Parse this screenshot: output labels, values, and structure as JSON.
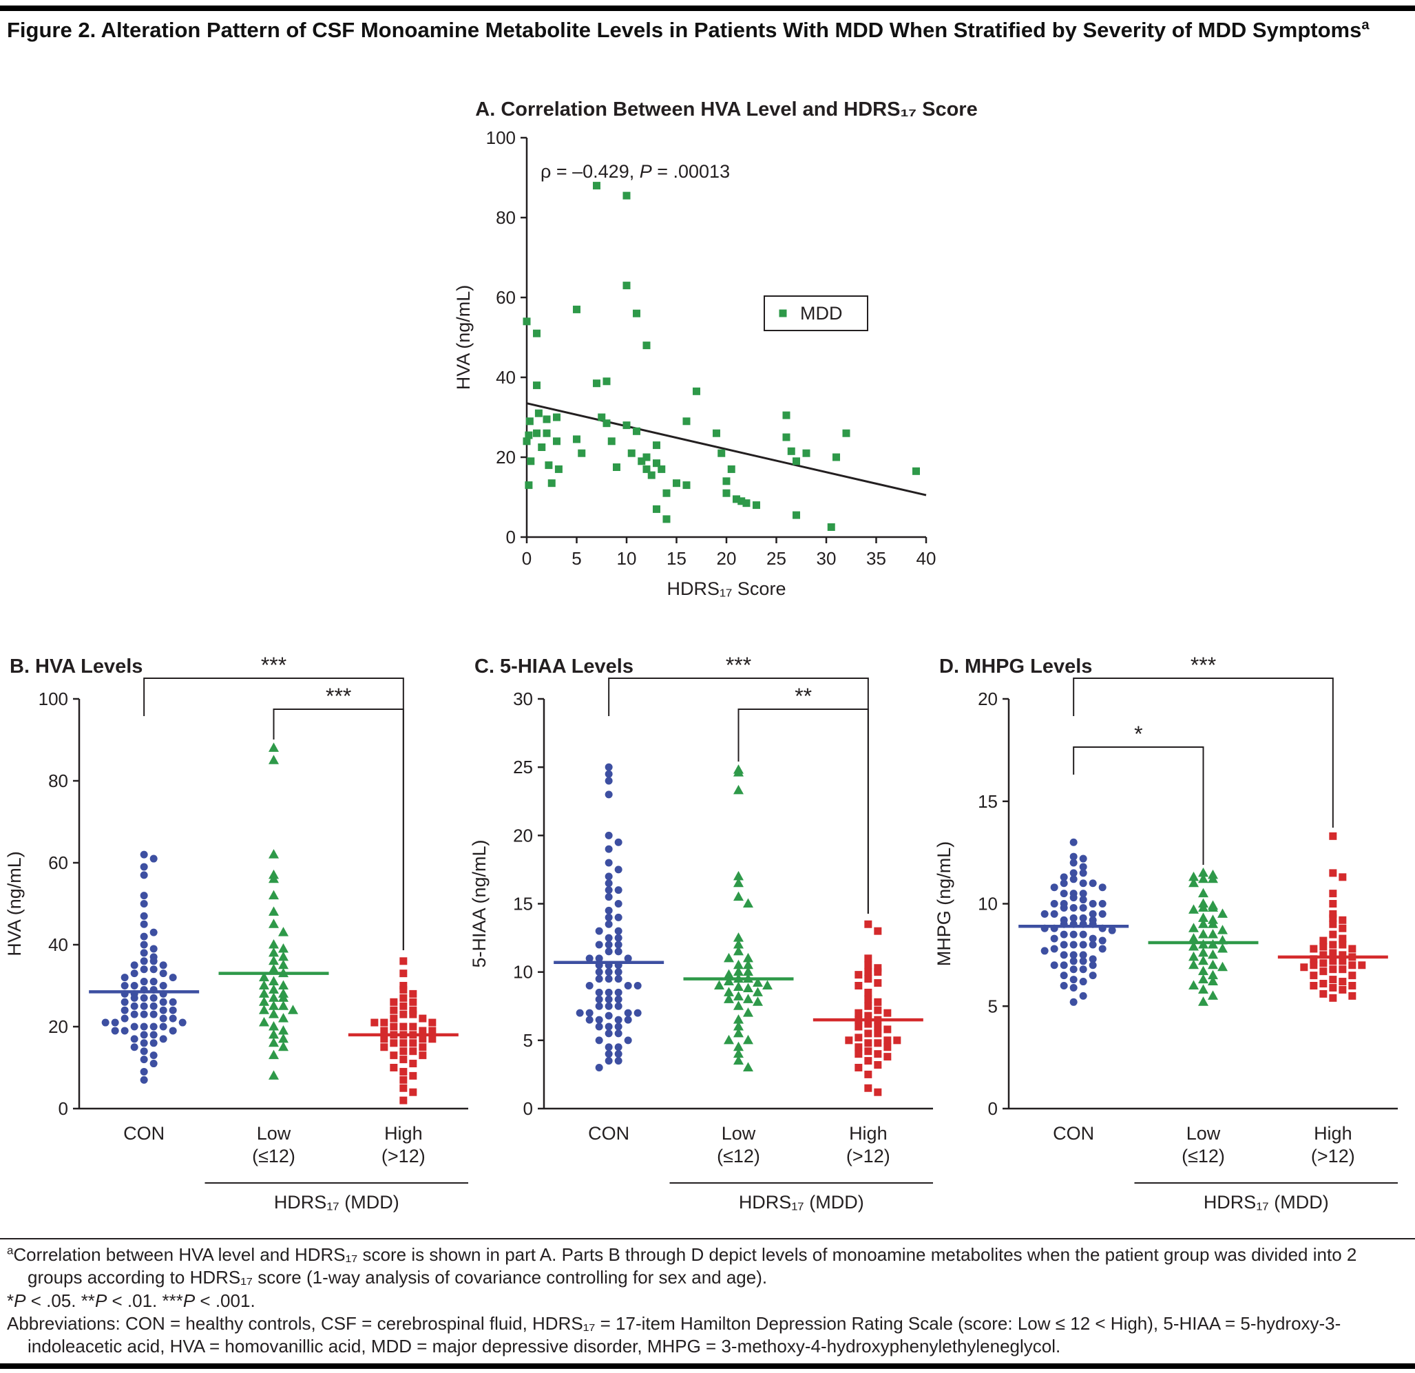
{
  "figure_title": [
    {
      "t": "Figure 2. Alteration Pattern of CSF Monoamine Metabolite Levels in Patients With MDD When Stratified by Severity of MDD Symptoms"
    },
    {
      "t": "a",
      "s": "sup"
    }
  ],
  "colors": {
    "con_blue": "#3d4fa1",
    "mdd_green": "#2e9949",
    "high_red": "#d42a2c",
    "axis": "#231f20"
  },
  "chart_data": [
    {
      "id": "A",
      "type": "scatter",
      "title": "A. Correlation Between HVA Level and HDRS₁₇ Score",
      "annotation": {
        "text": "ρ = –0.429, ",
        "p": "P",
        "value": " = .00013"
      },
      "legend": {
        "label": "MDD",
        "position": "right-middle"
      },
      "color": "#2e9949",
      "xlabel": "HDRS₁₇ Score",
      "ylabel": "HVA (ng/mL)",
      "xlim": [
        0,
        40
      ],
      "xticks": [
        0,
        5,
        10,
        15,
        20,
        25,
        30,
        35,
        40
      ],
      "ylim": [
        0,
        100
      ],
      "yticks": [
        0,
        20,
        40,
        60,
        80,
        100
      ],
      "regression_line": {
        "x1": 0,
        "y1": 33.5,
        "x2": 40,
        "y2": 10.5
      },
      "points": [
        [
          0,
          54
        ],
        [
          0.3,
          29
        ],
        [
          0.2,
          25.5
        ],
        [
          0,
          24
        ],
        [
          0.4,
          19
        ],
        [
          0.2,
          13
        ],
        [
          1,
          51
        ],
        [
          1,
          38
        ],
        [
          1.2,
          31
        ],
        [
          1,
          26
        ],
        [
          1.5,
          22.5
        ],
        [
          2,
          29.5
        ],
        [
          2,
          26
        ],
        [
          2.2,
          18
        ],
        [
          2.5,
          13.5
        ],
        [
          3,
          30
        ],
        [
          3,
          24
        ],
        [
          3.2,
          17
        ],
        [
          5,
          57
        ],
        [
          5,
          24.5
        ],
        [
          5.5,
          21
        ],
        [
          7,
          88
        ],
        [
          7,
          38.5
        ],
        [
          7.5,
          30
        ],
        [
          8,
          39
        ],
        [
          8,
          28.5
        ],
        [
          8.5,
          24
        ],
        [
          9,
          17.5
        ],
        [
          10,
          85.5
        ],
        [
          10,
          63
        ],
        [
          10,
          28
        ],
        [
          10.5,
          21
        ],
        [
          11,
          56
        ],
        [
          11,
          26.5
        ],
        [
          11.5,
          19
        ],
        [
          12,
          48
        ],
        [
          12,
          20
        ],
        [
          12,
          17
        ],
        [
          12.5,
          15.5
        ],
        [
          13,
          23
        ],
        [
          13,
          18.5
        ],
        [
          13,
          7
        ],
        [
          13.5,
          17
        ],
        [
          14,
          11
        ],
        [
          14,
          4.5
        ],
        [
          15,
          13.5
        ],
        [
          16,
          29
        ],
        [
          16,
          13
        ],
        [
          17,
          36.5
        ],
        [
          19,
          26
        ],
        [
          19.5,
          21
        ],
        [
          20,
          14
        ],
        [
          20,
          11
        ],
        [
          20.5,
          17
        ],
        [
          21,
          9.5
        ],
        [
          21.5,
          9
        ],
        [
          22,
          8.5
        ],
        [
          23,
          8
        ],
        [
          26,
          30.5
        ],
        [
          26,
          25
        ],
        [
          26.5,
          21.5
        ],
        [
          27,
          19
        ],
        [
          27,
          5.5
        ],
        [
          28,
          21
        ],
        [
          30.5,
          2.5
        ],
        [
          31,
          20
        ],
        [
          32,
          26
        ],
        [
          39,
          16.5
        ]
      ]
    },
    {
      "id": "B",
      "type": "strip",
      "title": "B. HVA Levels",
      "ylabel": "HVA (ng/mL)",
      "ylim": [
        0,
        100
      ],
      "yticks": [
        0,
        20,
        40,
        60,
        80,
        100
      ],
      "group_axis_label": "HDRS₁₇ (MDD)",
      "groups": [
        {
          "label": "CON",
          "label2": "",
          "marker": "circle",
          "color": "#3d4fa1",
          "mean": 28.5,
          "values": [
            62,
            61,
            59,
            57,
            52,
            50,
            47,
            45,
            43,
            42,
            40,
            39,
            38,
            37,
            36,
            36,
            35,
            35,
            34,
            34,
            33,
            33,
            32,
            32,
            31,
            31,
            30,
            30,
            30,
            29,
            29,
            28,
            28,
            28,
            27,
            27,
            27,
            26,
            26,
            26,
            25,
            25,
            25,
            24,
            24,
            24,
            23,
            23,
            23,
            22,
            22,
            22,
            21,
            21,
            21,
            20,
            20,
            20,
            20,
            19,
            19,
            19,
            18,
            18,
            17,
            17,
            16,
            16,
            15,
            14,
            13,
            12,
            11,
            9,
            7
          ]
        },
        {
          "label": "Low",
          "label2": "(≤12)",
          "marker": "triangle",
          "color": "#2e9949",
          "mean": 33,
          "values": [
            88,
            85,
            62,
            57,
            56,
            52,
            48,
            45,
            43,
            40,
            39,
            38,
            37,
            36,
            35,
            34,
            33,
            32,
            31,
            30,
            30,
            29,
            28,
            28,
            27,
            27,
            26,
            25,
            25,
            24,
            24,
            23,
            22,
            21,
            20,
            19,
            18,
            17,
            16,
            15,
            13,
            8
          ]
        },
        {
          "label": "High",
          "label2": "(>12)",
          "marker": "square",
          "color": "#d42a2c",
          "mean": 18,
          "values": [
            36,
            33,
            30,
            29,
            28,
            27,
            26,
            26,
            25,
            24,
            24,
            23,
            23,
            22,
            22,
            21,
            21,
            21,
            20,
            20,
            20,
            19,
            19,
            19,
            18,
            18,
            18,
            17,
            17,
            17,
            16,
            16,
            16,
            15,
            15,
            14,
            14,
            13,
            13,
            12,
            11,
            10,
            9,
            8,
            7,
            5,
            4,
            2
          ]
        }
      ],
      "brackets": [
        {
          "from": 0,
          "to": 2,
          "label": "***",
          "y": 50,
          "dropFrom": 55,
          "dropTo": 395
        },
        {
          "from": 1,
          "to": 2,
          "label": "***",
          "y": 95,
          "dropFrom": 44,
          "dropTo": 350
        }
      ]
    },
    {
      "id": "C",
      "type": "strip",
      "title": "C. 5-HIAA Levels",
      "ylabel": "5-HIAA (ng/mL)",
      "ylim": [
        0,
        30
      ],
      "yticks": [
        0,
        5,
        10,
        15,
        20,
        25,
        30
      ],
      "group_axis_label": "HDRS₁₇ (MDD)",
      "groups": [
        {
          "label": "CON",
          "label2": "",
          "marker": "circle",
          "color": "#3d4fa1",
          "mean": 10.7,
          "values": [
            25,
            24.5,
            24,
            23,
            20,
            19.5,
            19,
            18,
            17.5,
            17,
            16.5,
            16,
            16,
            15.5,
            15,
            14.5,
            14,
            14,
            13.5,
            13,
            13,
            12.5,
            12.5,
            12,
            12,
            12,
            11.5,
            11.5,
            11,
            11,
            11,
            10.5,
            10.5,
            10.5,
            10,
            10,
            10,
            9.5,
            9.5,
            9.5,
            9,
            9,
            9,
            8.5,
            8.5,
            8.5,
            8,
            8,
            8,
            7.5,
            7.5,
            7.5,
            7,
            7,
            7,
            7,
            6.8,
            6.5,
            6.5,
            6.5,
            6.5,
            6,
            6,
            6,
            5.5,
            5.5,
            5,
            5,
            4.5,
            4.5,
            4,
            4,
            3.5,
            3.5,
            3
          ]
        },
        {
          "label": "Low",
          "label2": "(≤12)",
          "marker": "triangle",
          "color": "#2e9949",
          "mean": 9.5,
          "values": [
            24.8,
            24.6,
            23.3,
            17,
            16.5,
            15.5,
            15,
            12.5,
            12,
            11.5,
            11,
            11,
            10.5,
            10.5,
            10,
            10,
            9.8,
            9.5,
            9.5,
            9.3,
            9.2,
            9,
            9,
            8.9,
            8.8,
            8.5,
            8.5,
            8.2,
            8,
            8,
            7.8,
            7.5,
            7,
            6.5,
            6,
            5.5,
            5,
            5,
            4.5,
            4,
            3.5,
            3
          ]
        },
        {
          "label": "High",
          "label2": "(>12)",
          "marker": "square",
          "color": "#d42a2c",
          "mean": 6.5,
          "values": [
            13.5,
            13,
            11,
            10.5,
            10.3,
            10,
            10,
            9.8,
            9.5,
            9.2,
            9,
            8.5,
            8,
            7.8,
            7.5,
            7.2,
            7,
            7,
            6.8,
            6.5,
            6.5,
            6.2,
            6,
            6,
            5.8,
            5.5,
            5.5,
            5.2,
            5,
            5,
            5,
            4.8,
            4.8,
            4.5,
            4.5,
            4.2,
            4,
            4,
            3.8,
            3.5,
            3.2,
            3,
            2.5,
            1.5,
            1.2
          ]
        }
      ],
      "brackets": [
        {
          "from": 0,
          "to": 2,
          "label": "***",
          "y": 50,
          "dropFrom": 55,
          "dropTo": 342
        },
        {
          "from": 1,
          "to": 2,
          "label": "**",
          "y": 95,
          "dropFrom": 76,
          "dropTo": 297
        }
      ]
    },
    {
      "id": "D",
      "type": "strip",
      "title": "D. MHPG Levels",
      "ylabel": "MHPG (ng/mL)",
      "ylim": [
        0,
        20
      ],
      "yticks": [
        0,
        5,
        10,
        15,
        20
      ],
      "group_axis_label": "HDRS₁₇ (MDD)",
      "groups": [
        {
          "label": "CON",
          "label2": "",
          "marker": "circle",
          "color": "#3d4fa1",
          "mean": 8.9,
          "values": [
            13,
            12.3,
            12.2,
            12,
            11.8,
            11.5,
            11.5,
            11.3,
            11.2,
            11,
            11,
            11,
            10.8,
            10.8,
            10.5,
            10.5,
            10.5,
            10.3,
            10.2,
            10,
            10,
            10,
            10,
            9.8,
            9.8,
            9.8,
            9.5,
            9.5,
            9.5,
            9.5,
            9.3,
            9.3,
            9.2,
            9.2,
            9,
            9,
            9,
            9,
            8.8,
            8.8,
            8.8,
            8.7,
            8.5,
            8.5,
            8.5,
            8.3,
            8.3,
            8.2,
            8,
            8,
            8,
            8,
            7.8,
            7.8,
            7.7,
            7.5,
            7.5,
            7.5,
            7.3,
            7.2,
            7.2,
            7,
            7,
            7,
            6.8,
            6.8,
            6.5,
            6.5,
            6.3,
            6.2,
            6,
            5.9,
            5.5,
            5.2
          ]
        },
        {
          "label": "Low",
          "label2": "(≤12)",
          "marker": "triangle",
          "color": "#2e9949",
          "mean": 8.1,
          "values": [
            11.5,
            11.4,
            11.3,
            11.2,
            11.2,
            11,
            10.5,
            10,
            9.9,
            9.8,
            9.8,
            9.7,
            9.5,
            9.3,
            9.2,
            9,
            9,
            8.8,
            8.7,
            8.5,
            8.5,
            8.3,
            8.2,
            8,
            8,
            7.9,
            7.8,
            7.6,
            7.5,
            7.4,
            7.2,
            7,
            7,
            6.9,
            6.7,
            6.5,
            6.3,
            6.2,
            6,
            5.8,
            5.5,
            5.2
          ]
        },
        {
          "label": "High",
          "label2": "(>12)",
          "marker": "square",
          "color": "#d42a2c",
          "mean": 7.4,
          "values": [
            13.3,
            11.5,
            11.3,
            10.5,
            10,
            9.5,
            9.3,
            9.2,
            9,
            8.8,
            8.5,
            8.3,
            8.2,
            8,
            8,
            7.9,
            7.8,
            7.8,
            7.6,
            7.5,
            7.5,
            7.4,
            7.3,
            7.2,
            7.2,
            7.1,
            7,
            7,
            7,
            6.9,
            6.8,
            6.8,
            6.7,
            6.5,
            6.5,
            6.3,
            6.2,
            6.1,
            6,
            6,
            5.9,
            5.8,
            5.6,
            5.5,
            5.4
          ]
        }
      ],
      "brackets": [
        {
          "from": 0,
          "to": 2,
          "label": "***",
          "y": 50,
          "dropFrom": 55,
          "dropTo": 217
        },
        {
          "from": 0,
          "to": 1,
          "label": "*",
          "y": 150,
          "dropFrom": 40,
          "dropTo": 171
        }
      ]
    }
  ],
  "footnotes": [
    [
      {
        "t": "a",
        "s": "sup"
      },
      {
        "t": "Correlation between HVA level and HDRS₁₇ score is shown in part A. Parts B through D depict levels of monoamine metabolites when the patient group was divided into 2 groups according to HDRS₁₇ score (1-way analysis of covariance controlling for sex and age)."
      }
    ],
    [
      {
        "t": "*"
      },
      {
        "t": "P",
        "s": "i"
      },
      {
        "t": " < .05. **"
      },
      {
        "t": "P",
        "s": "i"
      },
      {
        "t": " < .01. ***"
      },
      {
        "t": "P",
        "s": "i"
      },
      {
        "t": " < .001."
      }
    ],
    [
      {
        "t": "Abbreviations: CON = healthy controls, CSF = cerebrospinal fluid, HDRS₁₇ = 17-item Hamilton Depression Rating Scale (score: Low ≤ 12 < High), 5-HIAA = 5-hydroxy-3-indoleacetic acid, HVA = homovanillic acid, MDD = major depressive disorder, MHPG = 3-methoxy-4-hydroxyphenylethyleneglycol."
      }
    ]
  ]
}
